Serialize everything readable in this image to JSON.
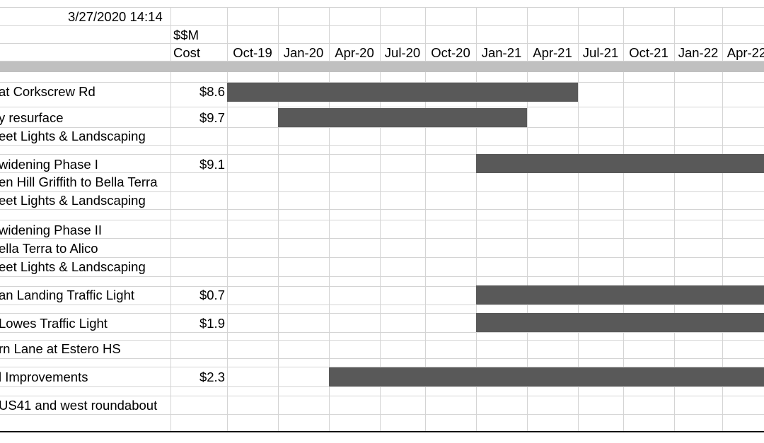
{
  "header": {
    "timestamp": "3/27/2020 14:14",
    "cost_label_line1": "$$M",
    "cost_label_line2": "Cost"
  },
  "months": [
    "Oct-19",
    "Jan-20",
    "Apr-20",
    "Jul-20",
    "Oct-20",
    "Jan-21",
    "Apr-21",
    "Jul-21",
    "Oct-21",
    "Jan-22",
    "Apr-22"
  ],
  "rows": [
    {
      "label": "at Corkscrew Rd",
      "cost": "$8.6"
    },
    {
      "label": "y resurface",
      "cost": "$9.7"
    },
    {
      "label": "eet Lights & Landscaping",
      "cost": ""
    },
    {
      "label": "widening Phase I",
      "cost": "$9.1"
    },
    {
      "label": "en Hill Griffith to Bella Terra",
      "cost": ""
    },
    {
      "label": "eet Lights & Landscaping",
      "cost": ""
    },
    {
      "label": "widening Phase II",
      "cost": ""
    },
    {
      "label": "ella Terra to Alico",
      "cost": ""
    },
    {
      "label": "eet Lights & Landscaping",
      "cost": ""
    },
    {
      "label": "an Landing Traffic Light",
      "cost": "$0.7"
    },
    {
      "label": "Lowes Traffic Light",
      "cost": "$1.9"
    },
    {
      "label": "rn Lane at Estero HS",
      "cost": ""
    },
    {
      "label": "l Improvements",
      "cost": "$2.3"
    },
    {
      "label": "US41 and west roundabout",
      "cost": ""
    }
  ],
  "bars": [
    {
      "row": 0,
      "start": "Oct-19",
      "end": "Apr-21"
    },
    {
      "row": 1,
      "start": "Jan-20",
      "end": "Jan-21"
    },
    {
      "row": 3,
      "start": "Jan-21",
      "end": "Apr-22"
    },
    {
      "row": 9,
      "start": "Jan-21",
      "end": "Apr-22"
    },
    {
      "row": 10,
      "start": "Jan-21",
      "end": "Apr-22"
    },
    {
      "row": 12,
      "start": "Apr-20",
      "end": "Apr-22"
    }
  ],
  "colors": {
    "bar": "#595959",
    "grid": "#d4d4d4",
    "band": "#c0c0c0"
  }
}
